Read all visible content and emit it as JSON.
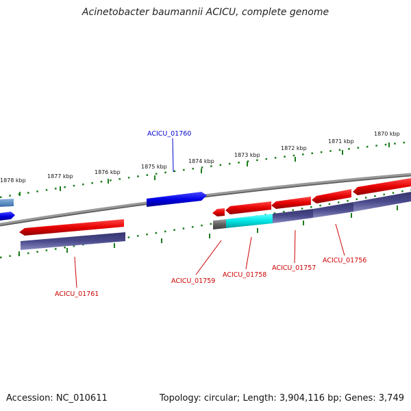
{
  "title": "Acinetobacter baumannii ACICU, complete genome",
  "footer": {
    "accession": "Accession: NC_010611",
    "summary": "Topology: circular; Length: 3,904,116 bp; Genes: 3,749"
  },
  "ruler_labels": [
    "1878 kbp",
    "1877 kbp",
    "1876 kbp",
    "1875 kbp",
    "1874 kbp",
    "1873 kbp",
    "1872 kbp",
    "1871 kbp",
    "1870 kbp"
  ],
  "gene_labels": [
    "ACICU_01760",
    "ACICU_01761",
    "ACICU_01759",
    "ACICU_01758",
    "ACICU_01757",
    "ACICU_01756"
  ],
  "colors": {
    "background": "#ffffff",
    "backbone": "#808080",
    "tick": "#1a7a1a",
    "forward_gene": "#0000e6",
    "reverse_gene": "#e60000",
    "cds_track": "#4a4a8c",
    "rna_highlight": "#00e5e5",
    "forward_label": "#0000cc",
    "reverse_label": "#cc0000"
  }
}
